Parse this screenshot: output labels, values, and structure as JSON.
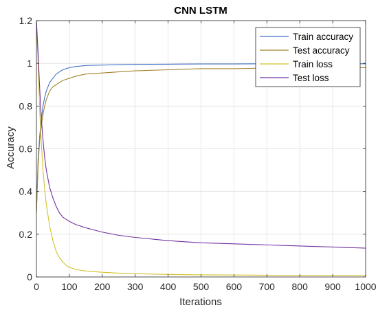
{
  "chart_data": {
    "type": "line",
    "title": "CNN LSTM",
    "xlabel": "Iterations",
    "ylabel": "Accuracy",
    "xlim": [
      0,
      1000
    ],
    "ylim": [
      0,
      1.2
    ],
    "xticks": [
      0,
      100,
      200,
      300,
      400,
      500,
      600,
      700,
      800,
      900,
      1000
    ],
    "yticks": [
      0,
      0.2,
      0.4,
      0.6,
      0.8,
      1,
      1.2
    ],
    "xtick_labels": [
      "0",
      "100",
      "200",
      "300",
      "400",
      "500",
      "600",
      "700",
      "800",
      "900",
      "1000"
    ],
    "ytick_labels": [
      "0",
      "0.2",
      "0.4",
      "0.6",
      "0.8",
      "1",
      "1.2"
    ],
    "grid": true,
    "legend_position": "top-right",
    "series": [
      {
        "name": "Train accuracy",
        "color": "#4472C4",
        "x": [
          0,
          5,
          10,
          15,
          20,
          25,
          30,
          40,
          50,
          60,
          70,
          80,
          90,
          100,
          120,
          150,
          200,
          250,
          300,
          400,
          500,
          600,
          700,
          800,
          900,
          1000
        ],
        "y": [
          0.3,
          0.55,
          0.66,
          0.74,
          0.8,
          0.84,
          0.87,
          0.91,
          0.93,
          0.95,
          0.96,
          0.97,
          0.975,
          0.98,
          0.985,
          0.99,
          0.992,
          0.994,
          0.995,
          0.996,
          0.997,
          0.997,
          0.998,
          0.998,
          0.998,
          0.998
        ]
      },
      {
        "name": "Test accuracy",
        "color": "#A0832A",
        "x": [
          0,
          5,
          10,
          15,
          20,
          25,
          30,
          40,
          50,
          60,
          70,
          80,
          90,
          100,
          120,
          150,
          200,
          250,
          300,
          400,
          500,
          600,
          700,
          800,
          900,
          1000
        ],
        "y": [
          0.3,
          0.52,
          0.64,
          0.71,
          0.76,
          0.8,
          0.83,
          0.87,
          0.89,
          0.9,
          0.91,
          0.92,
          0.925,
          0.93,
          0.94,
          0.95,
          0.955,
          0.96,
          0.965,
          0.97,
          0.975,
          0.975,
          0.978,
          0.98,
          0.98,
          0.98
        ]
      },
      {
        "name": "Train loss",
        "color": "#D4C02A",
        "x": [
          0,
          5,
          10,
          15,
          20,
          25,
          30,
          40,
          50,
          60,
          70,
          80,
          90,
          100,
          120,
          150,
          200,
          250,
          300,
          400,
          500,
          600,
          700,
          800,
          900,
          1000
        ],
        "y": [
          1.2,
          1.0,
          0.78,
          0.62,
          0.5,
          0.41,
          0.34,
          0.24,
          0.17,
          0.12,
          0.09,
          0.07,
          0.055,
          0.045,
          0.035,
          0.028,
          0.022,
          0.018,
          0.015,
          0.012,
          0.01,
          0.009,
          0.008,
          0.008,
          0.008,
          0.008
        ]
      },
      {
        "name": "Test loss",
        "color": "#7030A0",
        "x": [
          0,
          5,
          10,
          15,
          20,
          25,
          30,
          40,
          50,
          60,
          70,
          80,
          90,
          100,
          120,
          150,
          200,
          250,
          300,
          400,
          500,
          600,
          700,
          800,
          900,
          1000
        ],
        "y": [
          1.2,
          1.05,
          0.88,
          0.74,
          0.64,
          0.56,
          0.5,
          0.42,
          0.37,
          0.33,
          0.3,
          0.28,
          0.27,
          0.26,
          0.245,
          0.23,
          0.21,
          0.195,
          0.185,
          0.17,
          0.16,
          0.155,
          0.15,
          0.145,
          0.14,
          0.135
        ]
      }
    ]
  }
}
